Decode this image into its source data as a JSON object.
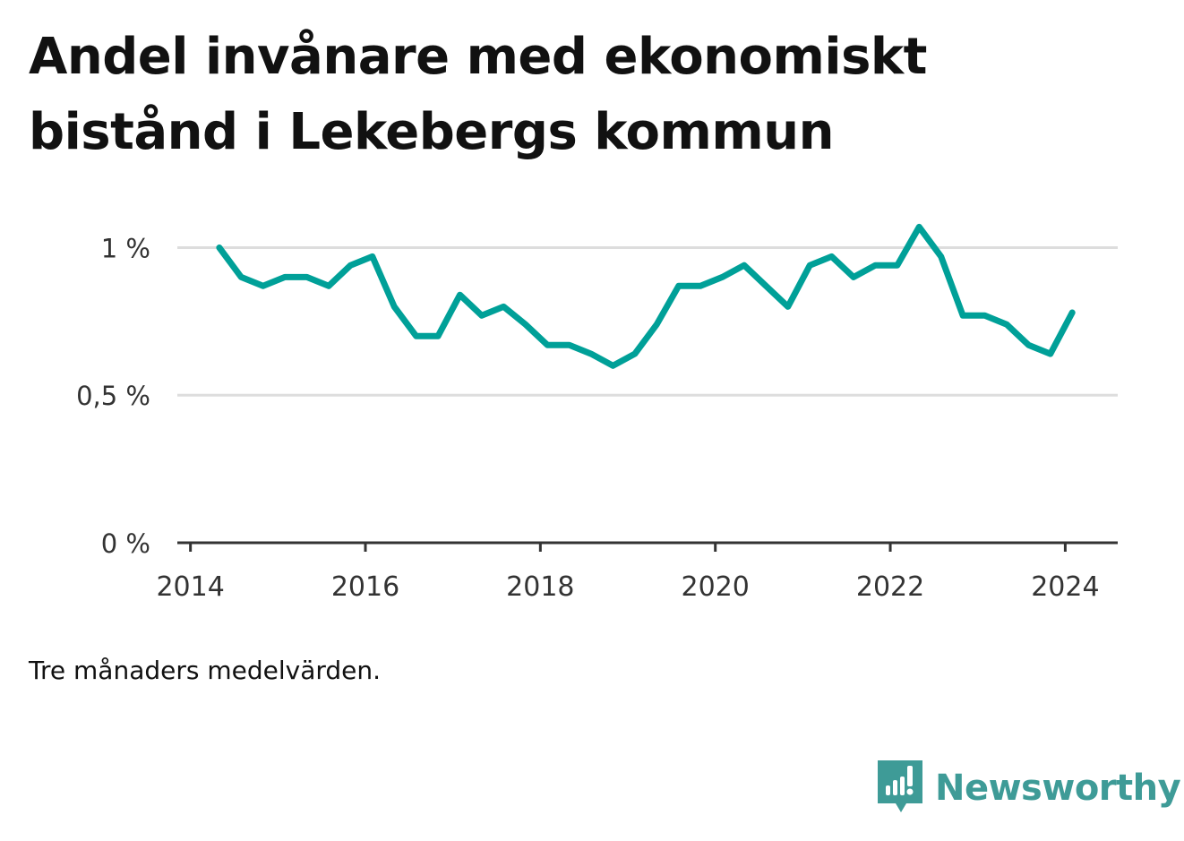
{
  "title": "Andel invånare med ekonomiskt bistånd i Lekebergs kommun",
  "footnote": "Tre månaders medelvärden.",
  "brand": {
    "name": "Newsworthy",
    "icon": "newsworthy-logo-icon",
    "color": "#3e9b97"
  },
  "chart_data": {
    "type": "line",
    "title": "Andel invånare med ekonomiskt bistånd i Lekebergs kommun",
    "xlabel": "",
    "ylabel": "",
    "xlim": [
      2013.85,
      2024.6
    ],
    "ylim": [
      0,
      1.05
    ],
    "y_ticks": [
      {
        "value": 0,
        "label": "0 %"
      },
      {
        "value": 0.5,
        "label": "0,5 %"
      },
      {
        "value": 1,
        "label": "1 %"
      }
    ],
    "x_ticks": [
      {
        "value": 2014,
        "label": "2014"
      },
      {
        "value": 2016,
        "label": "2016"
      },
      {
        "value": 2018,
        "label": "2018"
      },
      {
        "value": 2020,
        "label": "2020"
      },
      {
        "value": 2022,
        "label": "2022"
      },
      {
        "value": 2024,
        "label": "2024"
      }
    ],
    "grid": true,
    "color": "#00a098",
    "series": [
      {
        "name": "",
        "x": [
          2014.33,
          2014.58,
          2014.83,
          2015.08,
          2015.33,
          2015.58,
          2015.83,
          2016.08,
          2016.33,
          2016.58,
          2016.83,
          2017.08,
          2017.33,
          2017.58,
          2017.83,
          2018.08,
          2018.33,
          2018.58,
          2018.83,
          2019.08,
          2019.33,
          2019.58,
          2019.83,
          2020.08,
          2020.33,
          2020.58,
          2020.83,
          2021.08,
          2021.33,
          2021.58,
          2021.83,
          2022.08,
          2022.33,
          2022.58,
          2022.83,
          2023.08,
          2023.33,
          2023.58,
          2023.83,
          2024.08
        ],
        "values": [
          1.0,
          0.9,
          0.87,
          0.9,
          0.9,
          0.87,
          0.94,
          0.97,
          0.8,
          0.7,
          0.7,
          0.84,
          0.77,
          0.8,
          0.74,
          0.67,
          0.67,
          0.64,
          0.6,
          0.64,
          0.74,
          0.87,
          0.87,
          0.9,
          0.94,
          0.87,
          0.8,
          0.94,
          0.97,
          0.9,
          0.94,
          0.94,
          1.07,
          0.97,
          0.77,
          0.77,
          0.74,
          0.67,
          0.64,
          0.78
        ]
      }
    ]
  }
}
